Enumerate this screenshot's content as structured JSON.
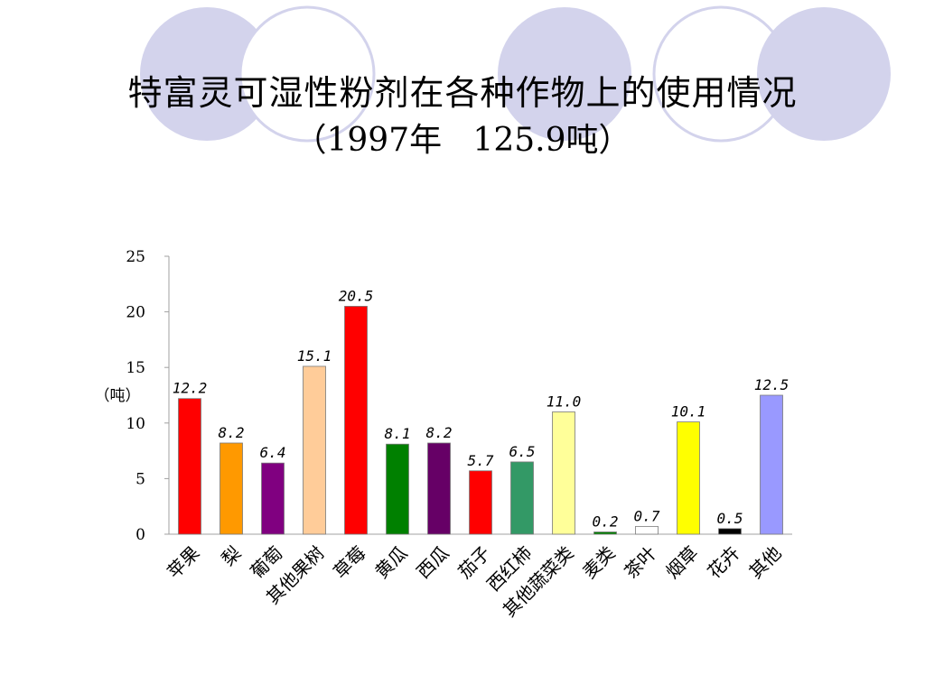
{
  "title": {
    "line1": "特富灵可湿性粉剂在各种作物上的使用情况",
    "line2": "（1997年   125.9吨）"
  },
  "colors": {
    "decor_circle": "#d3d3ec"
  },
  "chart_data": {
    "type": "bar",
    "ylabel": "（吨）",
    "ylim": [
      0,
      25
    ],
    "yticks": [
      0,
      5,
      10,
      15,
      20,
      25
    ],
    "grid": false,
    "categories": [
      "苹果",
      "梨",
      "葡萄",
      "其他果树",
      "草莓",
      "黄瓜",
      "西瓜",
      "茄子",
      "西红柿",
      "其他蔬菜类",
      "麦类",
      "茶叶",
      "烟草",
      "花卉",
      "其他"
    ],
    "values": [
      12.2,
      8.2,
      6.4,
      15.1,
      20.5,
      8.1,
      8.2,
      5.7,
      6.5,
      11.0,
      0.2,
      0.7,
      10.1,
      0.5,
      12.5
    ],
    "value_labels": [
      "12.2",
      "8.2",
      "6.4",
      "15.1",
      "20.5",
      "8.1",
      "8.2",
      "5.7",
      "6.5",
      "11.0",
      "0.2",
      "0.7",
      "10.1",
      "0.5",
      "12.5"
    ],
    "bar_colors": [
      "#ff0000",
      "#ff9900",
      "#800080",
      "#ffcc99",
      "#ff0000",
      "#008000",
      "#660066",
      "#ff0000",
      "#339966",
      "#ffff99",
      "#008000",
      "#ffffff",
      "#ffff00",
      "#000000",
      "#9999ff"
    ]
  }
}
